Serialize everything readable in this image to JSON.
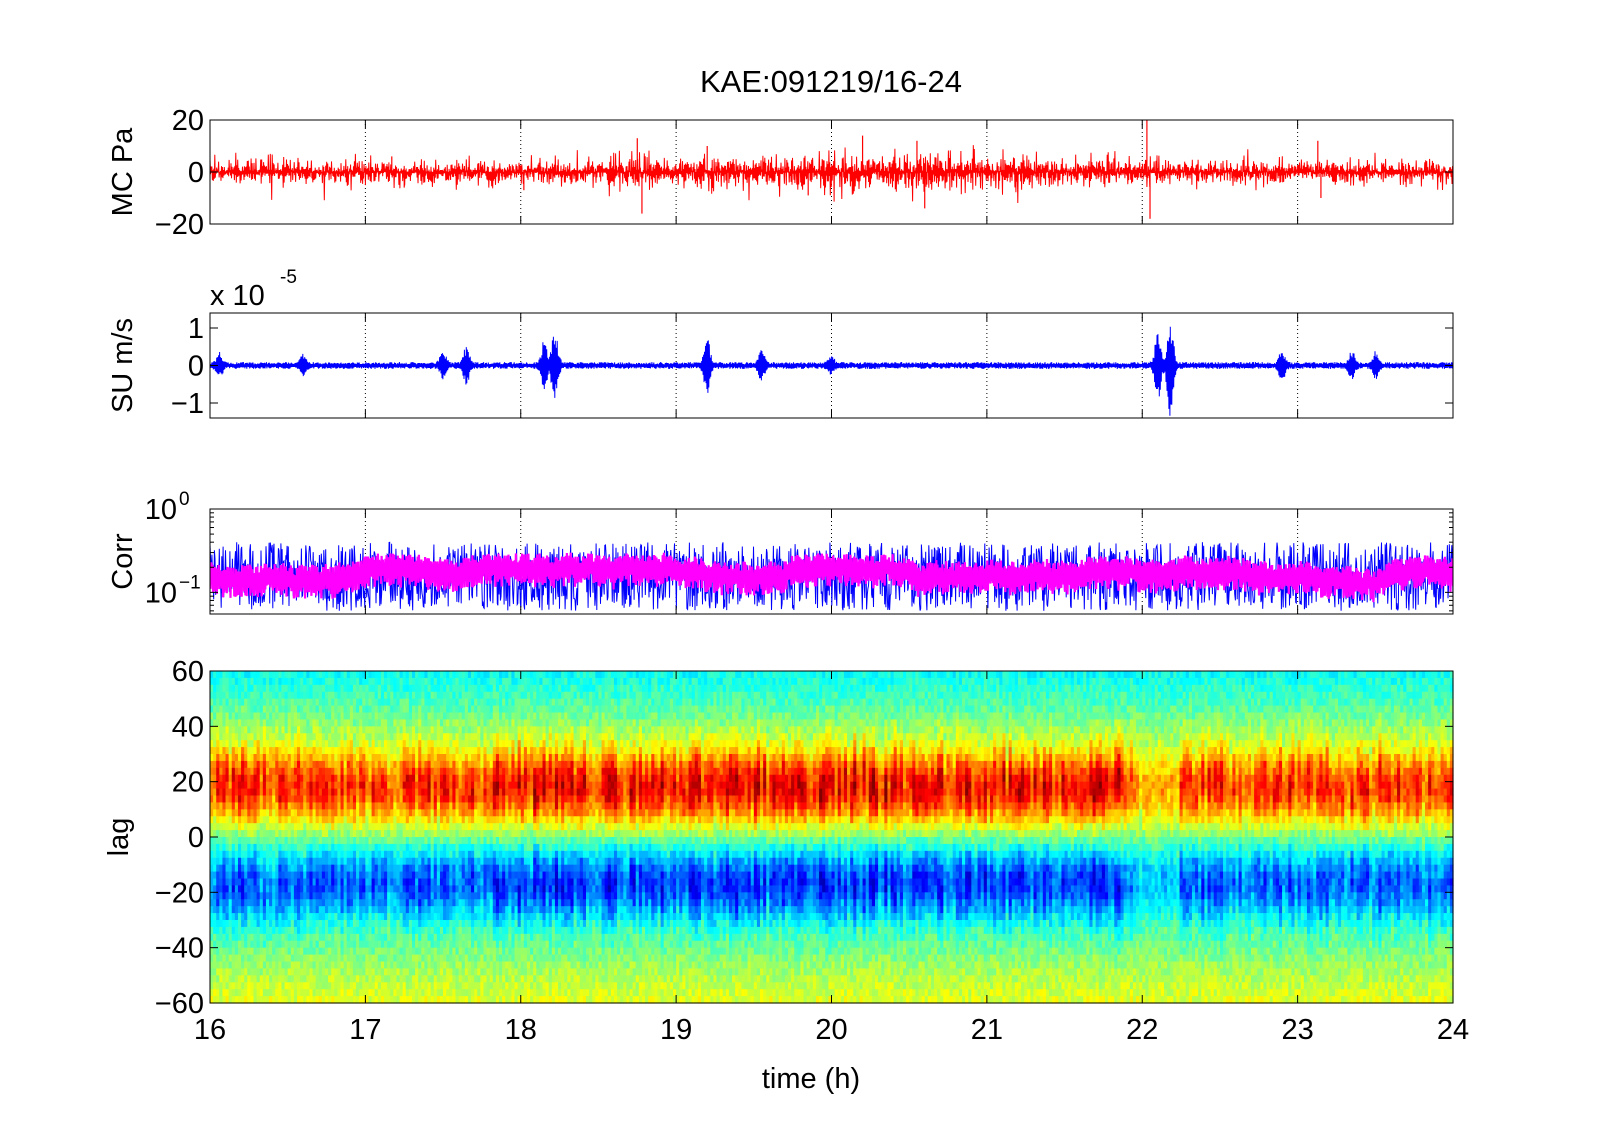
{
  "figure": {
    "title": "KAE:091219/16-24",
    "xlabel": "time (h)",
    "xticks": [
      "16",
      "17",
      "18",
      "19",
      "20",
      "21",
      "22",
      "23",
      "24"
    ]
  },
  "chart_data": [
    {
      "id": "mc",
      "type": "line",
      "ylabel": "MC Pa",
      "x_range": [
        16,
        24
      ],
      "ylim": [
        -20,
        20
      ],
      "ytick_values": [
        -20,
        0,
        20
      ],
      "yticks": [
        "−20",
        "0",
        "20"
      ],
      "grid": "x-dotted",
      "series": [
        {
          "color": "#ff0000",
          "baseline_amplitude": 4,
          "spikes": [
            {
              "x": 17.17,
              "y": 6
            },
            {
              "x": 17.25,
              "y": -6
            },
            {
              "x": 18.02,
              "y": -7
            },
            {
              "x": 18.75,
              "y": 13
            },
            {
              "x": 18.78,
              "y": -16
            },
            {
              "x": 19.2,
              "y": 10
            },
            {
              "x": 19.85,
              "y": -9
            },
            {
              "x": 20.2,
              "y": 14
            },
            {
              "x": 20.55,
              "y": 12
            },
            {
              "x": 20.6,
              "y": -14
            },
            {
              "x": 22.03,
              "y": 20
            },
            {
              "x": 22.05,
              "y": -18
            },
            {
              "x": 23.13,
              "y": 12
            },
            {
              "x": 23.15,
              "y": -10
            }
          ]
        }
      ]
    },
    {
      "id": "su",
      "type": "line",
      "ylabel": "SU m/s",
      "exponent": "-5",
      "exponent_prefix": "x 10",
      "x_range": [
        16,
        24
      ],
      "ylim": [
        -1.4,
        1.4
      ],
      "ytick_values": [
        -1,
        0,
        1
      ],
      "yticks": [
        "−1",
        "0",
        "1"
      ],
      "grid": "x-dotted",
      "series": [
        {
          "color": "#0000ff",
          "baseline_amplitude": 0.06,
          "bursts": [
            {
              "x": 16.06,
              "amp": 0.3
            },
            {
              "x": 16.6,
              "amp": 0.25
            },
            {
              "x": 17.5,
              "amp": 0.35
            },
            {
              "x": 17.65,
              "amp": 0.5
            },
            {
              "x": 18.15,
              "amp": 0.6
            },
            {
              "x": 18.22,
              "amp": 1.0
            },
            {
              "x": 19.2,
              "amp": 0.7
            },
            {
              "x": 19.55,
              "amp": 0.4
            },
            {
              "x": 20.0,
              "amp": 0.2
            },
            {
              "x": 22.1,
              "amp": 0.9
            },
            {
              "x": 22.18,
              "amp": 1.4
            },
            {
              "x": 22.9,
              "amp": 0.4
            },
            {
              "x": 23.35,
              "amp": 0.35
            },
            {
              "x": 23.5,
              "amp": 0.3
            }
          ]
        }
      ]
    },
    {
      "id": "corr",
      "type": "line",
      "ylabel": "Corr",
      "y_scale": "log",
      "x_range": [
        16,
        24
      ],
      "ylim": [
        0.055,
        1.0
      ],
      "ytick_values": [
        1.0,
        0.1
      ],
      "yticks": [
        {
          "base": "10",
          "exp": "0"
        },
        {
          "base": "10",
          "exp": "−1"
        }
      ],
      "grid": "x-dotted",
      "series": [
        {
          "color": "#0000ff",
          "typical_range": [
            0.06,
            0.4
          ]
        },
        {
          "color": "#ff00ff",
          "typical_range": [
            0.1,
            0.25
          ]
        }
      ]
    },
    {
      "id": "lag",
      "type": "heatmap",
      "ylabel": "lag",
      "x_range": [
        16,
        24
      ],
      "ylim": [
        -60,
        60
      ],
      "ytick_values": [
        -60,
        -40,
        -20,
        0,
        20,
        40,
        60
      ],
      "yticks": [
        "−60",
        "−40",
        "−20",
        "0",
        "20",
        "40",
        "60"
      ],
      "colormap": "jet",
      "pattern": {
        "peak_lag": 18,
        "trough_lag": -17
      }
    }
  ]
}
